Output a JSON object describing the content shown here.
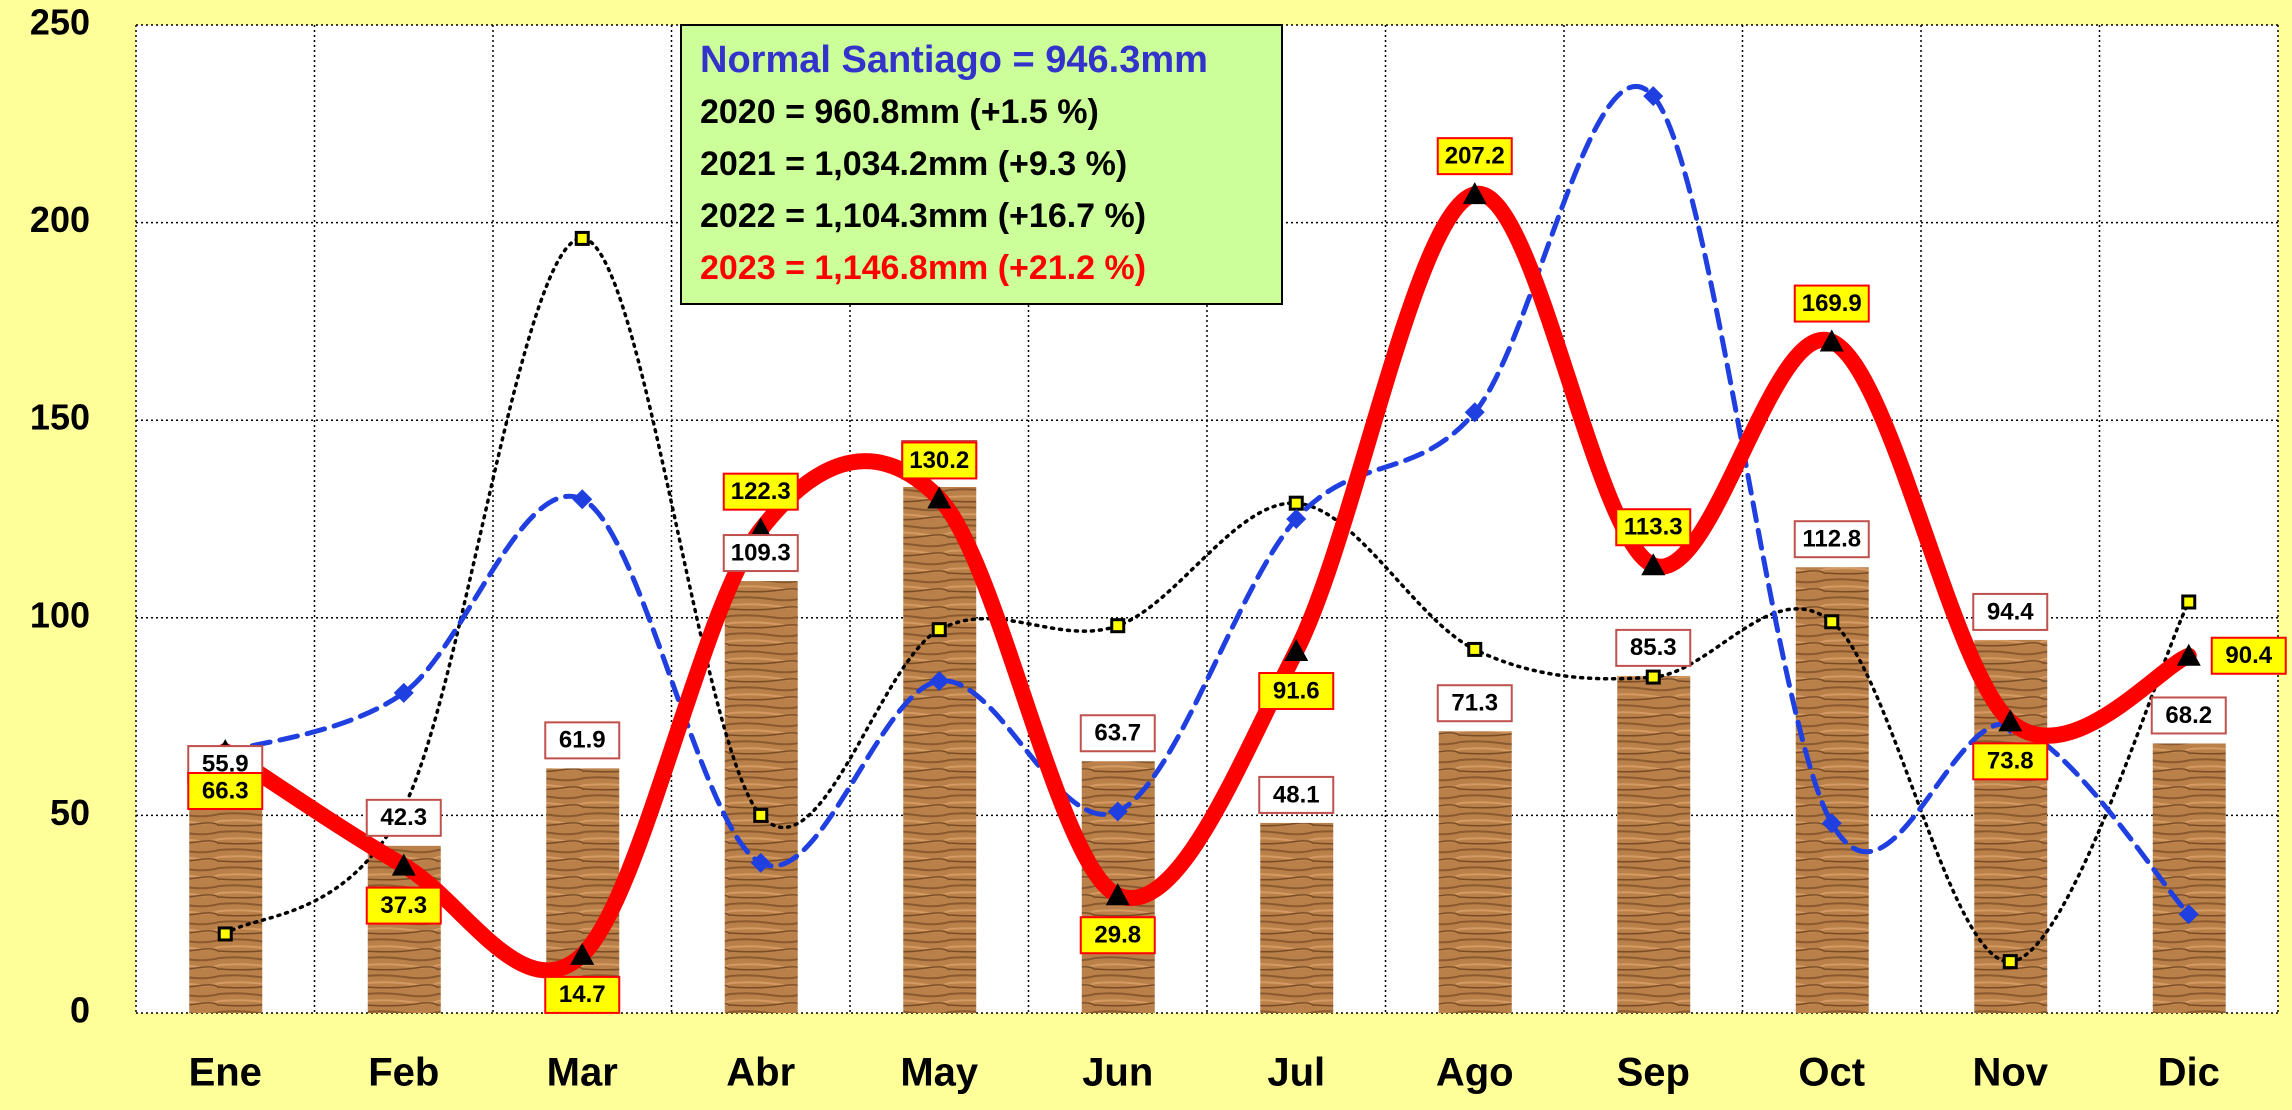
{
  "chart_data": {
    "type": "bar-line",
    "categories": [
      "Ene",
      "Feb",
      "Mar",
      "Abr",
      "May",
      "Jun",
      "Jul",
      "Ago",
      "Sep",
      "Oct",
      "Nov",
      "Dic"
    ],
    "ylim": [
      0,
      250
    ],
    "yticks": [
      0,
      50,
      100,
      150,
      200,
      250
    ],
    "grid": true,
    "bars": {
      "color": "#b9804a",
      "values": [
        55.9,
        42.3,
        61.9,
        109.3,
        133.1,
        63.7,
        48.1,
        71.3,
        85.3,
        112.8,
        94.4,
        68.2
      ]
    },
    "series": [
      {
        "color": "#000000",
        "style": "dotted",
        "marker": "square",
        "values": [
          20,
          52,
          196,
          50,
          97,
          98,
          129,
          92,
          85,
          99,
          13,
          104
        ]
      },
      {
        "color": "#1f3fe0",
        "style": "dashed",
        "marker": "diamond",
        "values": [
          66,
          81,
          130,
          38,
          84,
          51,
          125,
          152,
          232,
          48,
          73,
          25
        ]
      },
      {
        "color": "#ff0000",
        "style": "solid",
        "marker": "triangle",
        "labels": true,
        "values": [
          66.3,
          37.3,
          14.7,
          122.3,
          130.2,
          29.8,
          91.6,
          207.2,
          113.3,
          169.9,
          73.8,
          90.4
        ]
      }
    ],
    "annotations": [
      {
        "text": "Normal Santiago = 946.3mm",
        "color": "#3333cc"
      },
      {
        "text": "2020 = 960.8mm (+1.5 %)",
        "color": "#000000"
      },
      {
        "text": "2021 = 1,034.2mm (+9.3 %)",
        "color": "#000000"
      },
      {
        "text": "2022 = 1,104.3mm (+16.7 %)",
        "color": "#000000"
      },
      {
        "text": "2023 = 1,146.8mm (+21.2 %)",
        "color": "#ff0000"
      }
    ]
  }
}
